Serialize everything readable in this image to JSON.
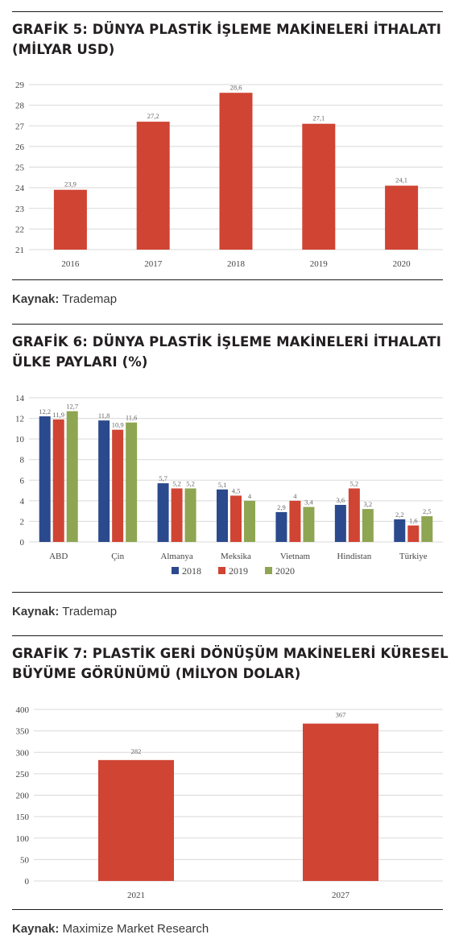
{
  "sections": [
    {
      "title": "GRAFİK 5: DÜNYA PLASTİK İŞLEME MAKİNELERİ İTHALATI (MİLYAR USD)",
      "source_label": "Kaynak:",
      "source_text": "Trademap"
    },
    {
      "title": "GRAFİK 6: DÜNYA PLASTİK İŞLEME MAKİNELERİ İTHALATI ÜLKE PAYLARI (%)",
      "source_label": "Kaynak:",
      "source_text": "Trademap"
    },
    {
      "title": "GRAFİK 7: PLASTİK GERİ DÖNÜŞÜM MAKİNELERİ KÜRESEL BÜYÜME GÖRÜNÜMÜ (MİLYON DOLAR)",
      "source_label": "Kaynak:",
      "source_text": "Maximize Market Research"
    }
  ],
  "colors": {
    "red": "#d04433",
    "blue": "#2b4a8d",
    "green": "#8ea552",
    "grid": "#d9d9d9",
    "rule": "#1a1a1a"
  },
  "chart_data": [
    {
      "type": "bar",
      "title": "GRAFİK 5: DÜNYA PLASTİK İŞLEME MAKİNELERİ İTHALATI (MİLYAR USD)",
      "categories": [
        "2016",
        "2017",
        "2018",
        "2019",
        "2020"
      ],
      "values": [
        23.9,
        27.2,
        28.6,
        27.1,
        24.1
      ],
      "value_labels": [
        "23,9",
        "27,2",
        "28,6",
        "27,1",
        "24,1"
      ],
      "ylim": [
        21,
        29
      ],
      "yticks": [
        21,
        22,
        23,
        24,
        25,
        26,
        27,
        28,
        29
      ],
      "grid": true
    },
    {
      "type": "bar",
      "title": "GRAFİK 6: DÜNYA PLASTİK İŞLEME MAKİNELERİ İTHALATI ÜLKE PAYLARI (%)",
      "categories": [
        "ABD",
        "Çin",
        "Almanya",
        "Meksika",
        "Vietnam",
        "Hindistan",
        "Türkiye"
      ],
      "series": [
        {
          "name": "2018",
          "values": [
            12.2,
            11.8,
            5.7,
            5.1,
            2.9,
            3.6,
            2.2
          ],
          "labels": [
            "12,2",
            "11,8",
            "5,7",
            "5,1",
            "2,9",
            "3,6",
            "2,2"
          ]
        },
        {
          "name": "2019",
          "values": [
            11.9,
            10.9,
            5.2,
            4.5,
            4,
            5.2,
            1.6
          ],
          "labels": [
            "11,9",
            "10,9",
            "5,2",
            "4,5",
            "4",
            "5,2",
            "1,6"
          ]
        },
        {
          "name": "2020",
          "values": [
            12.7,
            11.6,
            5.2,
            4,
            3.4,
            3.2,
            2.5
          ],
          "labels": [
            "12,7",
            "11,6",
            "5,2",
            "4",
            "3,4",
            "3,2",
            "2,5"
          ]
        }
      ],
      "ylim": [
        0,
        14
      ],
      "yticks": [
        0,
        2,
        4,
        6,
        8,
        10,
        12,
        14
      ],
      "legend": "bottom-center",
      "grid": true
    },
    {
      "type": "bar",
      "title": "GRAFİK 7: PLASTİK GERİ DÖNÜŞÜM MAKİNELERİ KÜRESEL BÜYÜME GÖRÜNÜMÜ (MİLYON DOLAR)",
      "categories": [
        "2021",
        "2027"
      ],
      "values": [
        282,
        367
      ],
      "value_labels": [
        "282",
        "367"
      ],
      "ylim": [
        0,
        400
      ],
      "yticks": [
        0,
        50,
        100,
        150,
        200,
        250,
        300,
        350,
        400
      ],
      "grid": true
    }
  ]
}
